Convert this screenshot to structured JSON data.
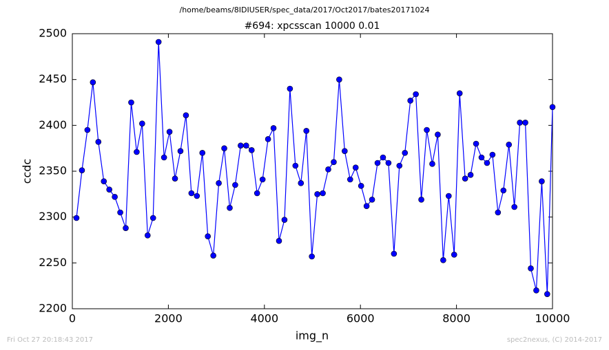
{
  "chart_data": {
    "type": "line",
    "suptitle": "/home/beams/8IDIUSER/spec_data/2017/Oct2017/bates20171024",
    "title": "#694: xpcsscan 10000 0.01",
    "xlabel": "img_n",
    "ylabel": "ccdc",
    "footer_left": "Fri Oct 27 20:18:43 2017",
    "footer_right": "spec2nexus, (C) 2014-2017",
    "xlim": [
      0,
      10000
    ],
    "xticks": [
      0,
      2000,
      4000,
      6000,
      8000,
      10000
    ],
    "ylim": [
      2200,
      2500
    ],
    "yticks": [
      2200,
      2250,
      2300,
      2350,
      2400,
      2450,
      2500
    ],
    "x": [
      86,
      200,
      314,
      428,
      542,
      656,
      770,
      884,
      998,
      1112,
      1226,
      1340,
      1454,
      1568,
      1682,
      1796,
      1910,
      2024,
      2138,
      2252,
      2366,
      2480,
      2594,
      2708,
      2822,
      2936,
      3050,
      3164,
      3278,
      3392,
      3506,
      3620,
      3734,
      3848,
      3962,
      4076,
      4190,
      4304,
      4418,
      4532,
      4646,
      4760,
      4874,
      4988,
      5102,
      5216,
      5330,
      5444,
      5558,
      5672,
      5786,
      5900,
      6014,
      6128,
      6242,
      6356,
      6470,
      6584,
      6698,
      6812,
      6926,
      7040,
      7154,
      7268,
      7382,
      7496,
      7610,
      7724,
      7838,
      7952,
      8066,
      8180,
      8294,
      8408,
      8522,
      8636,
      8750,
      8864,
      8978,
      9092,
      9206,
      9320,
      9434,
      9548,
      9662,
      9776,
      9890,
      10000
    ],
    "series": [
      {
        "color": "#0000ff",
        "values": [
          2299,
          2351,
          2395,
          2447,
          2382,
          2339,
          2330,
          2322,
          2305,
          2288,
          2425,
          2371,
          2402,
          2280,
          2299,
          2491,
          2365,
          2393,
          2342,
          2372,
          2411,
          2326,
          2323,
          2370,
          2279,
          2258,
          2337,
          2375,
          2310,
          2335,
          2378,
          2378,
          2373,
          2326,
          2341,
          2385,
          2397,
          2274,
          2297,
          2440,
          2356,
          2337,
          2394,
          2257,
          2325,
          2326,
          2352,
          2360,
          2450,
          2372,
          2341,
          2354,
          2334,
          2312,
          2319,
          2359,
          2365,
          2359,
          2260,
          2356,
          2370,
          2427,
          2434,
          2319,
          2395,
          2358,
          2390,
          2253,
          2323,
          2259,
          2435,
          2342,
          2346,
          2380,
          2365,
          2359,
          2368,
          2305,
          2329,
          2379,
          2311,
          2403,
          2403,
          2244,
          2220,
          2339,
          2216,
          2420
        ]
      }
    ]
  }
}
